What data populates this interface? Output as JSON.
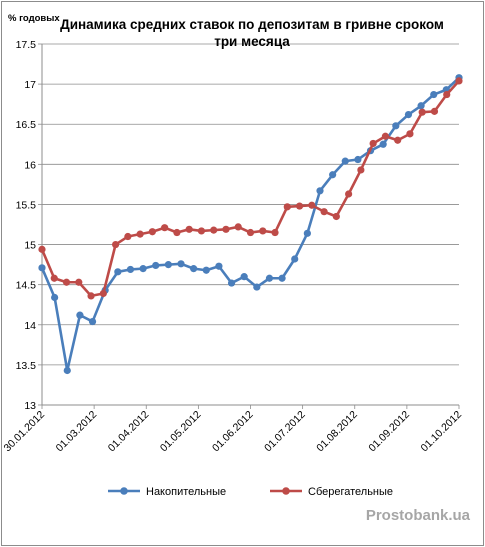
{
  "chart_data": {
    "type": "line",
    "title": "Динамика средних ставок по депозитам в гривне сроком три месяца",
    "title_lines": [
      "Динамика средних ставок по депозитам в гривне сроком",
      "три месяца"
    ],
    "ylabel": "% годовых",
    "xlabel": "",
    "ylim": [
      13,
      17.5
    ],
    "y_ticks": [
      13,
      13.5,
      14,
      14.5,
      15,
      15.5,
      16,
      16.5,
      17,
      17.5
    ],
    "y_tick_labels": [
      "13",
      "13.5",
      "14",
      "14.5",
      "15",
      "15.5",
      "16",
      "16.5",
      "17",
      "17.5"
    ],
    "x_tick_labels": [
      "30.01.2012",
      "01.03.2012",
      "01.04.2012",
      "01.05.2012",
      "01.06.2012",
      "01.07.2012",
      "01.08.2012",
      "01.09.2012",
      "01.10.2012"
    ],
    "grid": "horizontal",
    "legend_position": "bottom",
    "series": [
      {
        "name": "Накопительные",
        "color": "#4a7ebb",
        "values": [
          14.71,
          14.34,
          13.43,
          14.12,
          14.04,
          14.43,
          14.66,
          14.69,
          14.7,
          14.74,
          14.75,
          14.76,
          14.7,
          14.68,
          14.73,
          14.52,
          14.6,
          14.47,
          14.58,
          14.58,
          14.82,
          15.14,
          15.67,
          15.87,
          16.04,
          16.06,
          16.17,
          16.25,
          16.48,
          16.62,
          16.73,
          16.87,
          16.93,
          17.08
        ]
      },
      {
        "name": "Сберегательные",
        "color": "#be4b48",
        "values": [
          14.94,
          14.58,
          14.53,
          14.53,
          14.36,
          14.39,
          15.0,
          15.1,
          15.13,
          15.16,
          15.21,
          15.15,
          15.19,
          15.17,
          15.18,
          15.19,
          15.22,
          15.15,
          15.17,
          15.15,
          15.47,
          15.48,
          15.49,
          15.41,
          15.35,
          15.63,
          15.93,
          16.26,
          16.35,
          16.3,
          16.38,
          16.65,
          16.66,
          16.87,
          17.04
        ]
      }
    ]
  },
  "watermark": "Prostobank.ua"
}
